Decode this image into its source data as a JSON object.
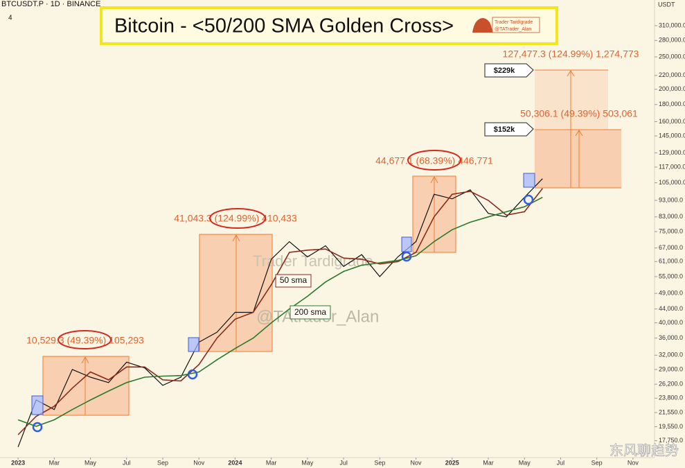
{
  "chart_data": {
    "type": "line",
    "symbol": "BTCUSDT.P · 1D · BINANCE",
    "indicator_count": "4",
    "title": "Bitcoin - <50/200 SMA Golden Cross>",
    "badge": [
      "Trader Tardigrade",
      "@TATrader_Alan"
    ],
    "currency": "USDT",
    "watermarks": [
      "Trader Tardigrade",
      "@TAtrader_Alan"
    ],
    "footer_watermark": "东风聊趋势",
    "line_labels": [
      "50 sma",
      "200 sma"
    ],
    "annotations": [
      "10,529.3 (49.39%) 105,293",
      "41,043.3 (124.99%) 410,433",
      "44,677.1 (68.39%) 446,771",
      "50,306.1 (49.39%) 503,061",
      "127,477.3 (124.99%) 1,274,773"
    ],
    "callouts": [
      "$229k",
      "$152k"
    ],
    "log_scale": true,
    "grid": false,
    "x": [
      "2023-01",
      "2023-02",
      "2023-03",
      "2023-04",
      "2023-05",
      "2023-06",
      "2023-07",
      "2023-08",
      "2023-09",
      "2023-10",
      "2023-11",
      "2023-12",
      "2024-01",
      "2024-02",
      "2024-03",
      "2024-04",
      "2024-05",
      "2024-06",
      "2024-07",
      "2024-08",
      "2024-09",
      "2024-10",
      "2024-11",
      "2024-12",
      "2025-01",
      "2025-02",
      "2025-03",
      "2025-04",
      "2025-05",
      "2025-06"
    ],
    "series": [
      {
        "name": "BTCUSDT.P",
        "color": "#111111",
        "values": [
          17000,
          23500,
          22000,
          29000,
          27500,
          26500,
          30500,
          29300,
          26000,
          27500,
          35000,
          37500,
          43000,
          43000,
          62000,
          70000,
          63000,
          68000,
          59000,
          64000,
          55000,
          63000,
          70000,
          97000,
          94000,
          100000,
          85000,
          83000,
          95000,
          108000
        ]
      },
      {
        "name": "50 sma",
        "color": "#8b2a1a",
        "values": [
          18500,
          21000,
          22500,
          25500,
          28500,
          27000,
          29500,
          29500,
          27000,
          26800,
          30000,
          36000,
          41000,
          43000,
          52000,
          65000,
          66000,
          66500,
          62500,
          62000,
          60000,
          61000,
          65000,
          83000,
          97000,
          99000,
          93000,
          84000,
          86000,
          101000
        ]
      },
      {
        "name": "200 sma",
        "color": "#2a7a2a",
        "values": [
          20500,
          19600,
          20500,
          22000,
          23500,
          25000,
          26500,
          27500,
          27700,
          27800,
          28500,
          31000,
          33500,
          36000,
          40000,
          44000,
          48000,
          53000,
          57000,
          59500,
          60500,
          61500,
          63500,
          70000,
          76000,
          80000,
          83000,
          86000,
          89000,
          95000
        ]
      }
    ],
    "xlim": [
      "2022-12",
      "2025-12"
    ],
    "xticks": [
      {
        "value": "2023-01",
        "label": "2023"
      },
      {
        "value": "2023-03",
        "label": "Mar"
      },
      {
        "value": "2023-05",
        "label": "May"
      },
      {
        "value": "2023-07",
        "label": "Jul"
      },
      {
        "value": "2023-09",
        "label": "Sep"
      },
      {
        "value": "2023-11",
        "label": "Nov"
      },
      {
        "value": "2024-01",
        "label": "2024"
      },
      {
        "value": "2024-03",
        "label": "Mar"
      },
      {
        "value": "2024-05",
        "label": "May"
      },
      {
        "value": "2024-07",
        "label": "Jul"
      },
      {
        "value": "2024-09",
        "label": "Sep"
      },
      {
        "value": "2024-11",
        "label": "Nov"
      },
      {
        "value": "2025-01",
        "label": "2025"
      },
      {
        "value": "2025-03",
        "label": "Mar"
      },
      {
        "value": "2025-05",
        "label": "May"
      },
      {
        "value": "2025-07",
        "label": "Jul"
      },
      {
        "value": "2025-09",
        "label": "Sep"
      },
      {
        "value": "2025-11",
        "label": "Nov"
      }
    ],
    "ylim": [
      15800,
      370000
    ],
    "yticks": [
      {
        "value": 310000,
        "label": "310,000.0"
      },
      {
        "value": 280000,
        "label": "280,000.0"
      },
      {
        "value": 250000,
        "label": "250,000.0"
      },
      {
        "value": 220000,
        "label": "220,000.0"
      },
      {
        "value": 200000,
        "label": "200,000.0"
      },
      {
        "value": 180000,
        "label": "180,000.0"
      },
      {
        "value": 160000,
        "label": "160,000.0"
      },
      {
        "value": 145000,
        "label": "145,000.0"
      },
      {
        "value": 129000,
        "label": "129,000.0"
      },
      {
        "value": 117000,
        "label": "117,000.0"
      },
      {
        "value": 105000,
        "label": "105,000.0"
      },
      {
        "value": 93000,
        "label": "93,000.0"
      },
      {
        "value": 83000,
        "label": "83,000.0"
      },
      {
        "value": 75000,
        "label": "75,000.0"
      },
      {
        "value": 67000,
        "label": "67,000.0"
      },
      {
        "value": 61000,
        "label": "61,000.0"
      },
      {
        "value": 55000,
        "label": "55,000.0"
      },
      {
        "value": 49000,
        "label": "49,000.0"
      },
      {
        "value": 44000,
        "label": "44,000.0"
      },
      {
        "value": 40000,
        "label": "40,000.0"
      },
      {
        "value": 36000,
        "label": "36,000.0"
      },
      {
        "value": 32000,
        "label": "32,000.0"
      },
      {
        "value": 29000,
        "label": "29,000.0"
      },
      {
        "value": 26200,
        "label": "26,200.0"
      },
      {
        "value": 23800,
        "label": "23,800.0"
      },
      {
        "value": 21550,
        "label": "21,550.0"
      },
      {
        "value": 19550,
        "label": "19,550.0"
      },
      {
        "value": 17750,
        "label": "17,750.0"
      }
    ]
  }
}
